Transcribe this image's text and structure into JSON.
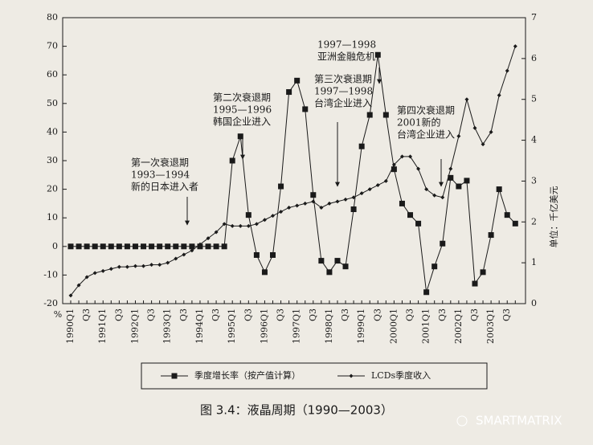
{
  "chart_data": {
    "type": "line",
    "title": "图 3.4：液晶周期（1990—2003）",
    "y_label": "%",
    "y2_label": "单位：千亿美元",
    "categories": [
      "1990Q1",
      null,
      "Q3",
      null,
      "1991Q1",
      null,
      "Q3",
      null,
      "1992Q1",
      null,
      "Q3",
      null,
      "1993Q1",
      null,
      "Q3",
      null,
      "1994Q1",
      null,
      "Q3",
      null,
      "1995Q1",
      null,
      "Q3",
      null,
      "1996Q1",
      null,
      "Q3",
      null,
      "1997Q1",
      null,
      "Q3",
      null,
      "1998Q1",
      null,
      "Q3",
      null,
      "1999Q1",
      null,
      "Q3",
      null,
      "2000Q1",
      null,
      "Q3",
      null,
      "2001Q1",
      null,
      "Q3",
      null,
      "2002Q1",
      null,
      "Q3",
      null,
      "2003Q1",
      null,
      "Q3",
      null
    ],
    "ylim": [
      -20,
      80
    ],
    "yticks": [
      -20,
      -10,
      0,
      10,
      20,
      30,
      40,
      50,
      60,
      70,
      80
    ],
    "y2lim": [
      0,
      7
    ],
    "y2ticks": [
      0,
      1,
      2,
      3,
      4,
      5,
      6,
      7
    ],
    "series": [
      {
        "name": "季度增长率（按产值计算）",
        "color": "#1a1a1a",
        "marker": "square",
        "values": [
          0,
          0,
          0,
          0,
          0,
          0,
          0,
          0,
          0,
          0,
          0,
          0,
          0,
          0,
          0,
          0,
          0,
          0,
          0,
          0,
          30,
          38.5,
          11,
          -3,
          -9,
          -3,
          21,
          54,
          58,
          48,
          18,
          -5,
          -9,
          -5,
          -7,
          13,
          35,
          46,
          67,
          46,
          27,
          15,
          11,
          8,
          -16,
          -7,
          1,
          24,
          21,
          23,
          -13,
          -9,
          4,
          20,
          11,
          8
        ]
      },
      {
        "name": "LCDs季度收入",
        "color": "#1a1a1a",
        "marker": "diamond",
        "axis": "y2",
        "values": [
          0.2,
          0.45,
          0.65,
          0.75,
          0.8,
          0.85,
          0.9,
          0.9,
          0.92,
          0.92,
          0.95,
          0.95,
          1.0,
          1.1,
          1.2,
          1.3,
          1.45,
          1.6,
          1.75,
          1.95,
          1.9,
          1.9,
          1.9,
          1.95,
          2.05,
          2.15,
          2.25,
          2.35,
          2.4,
          2.45,
          2.5,
          2.35,
          2.45,
          2.5,
          2.55,
          2.6,
          2.7,
          2.8,
          2.9,
          3.0,
          3.4,
          3.6,
          3.6,
          3.3,
          2.8,
          2.65,
          2.6,
          3.3,
          4.1,
          5.0,
          4.3,
          3.9,
          4.2,
          5.1,
          5.7,
          6.3
        ]
      }
    ],
    "annotations": [
      [
        "第一次衰退期",
        "1993—1994",
        "新的日本进入者"
      ],
      [
        "第二次衰退期",
        "1995—1996",
        "韩国企业进入"
      ],
      [
        "1997—1998",
        "亚洲金融危机"
      ],
      [
        "第三次衰退期",
        "1997—1998",
        "台湾企业进入"
      ],
      [
        "第四次衰退期",
        "2001新的",
        "台湾企业进入"
      ]
    ],
    "watermark": "SMARTMATRIX"
  }
}
